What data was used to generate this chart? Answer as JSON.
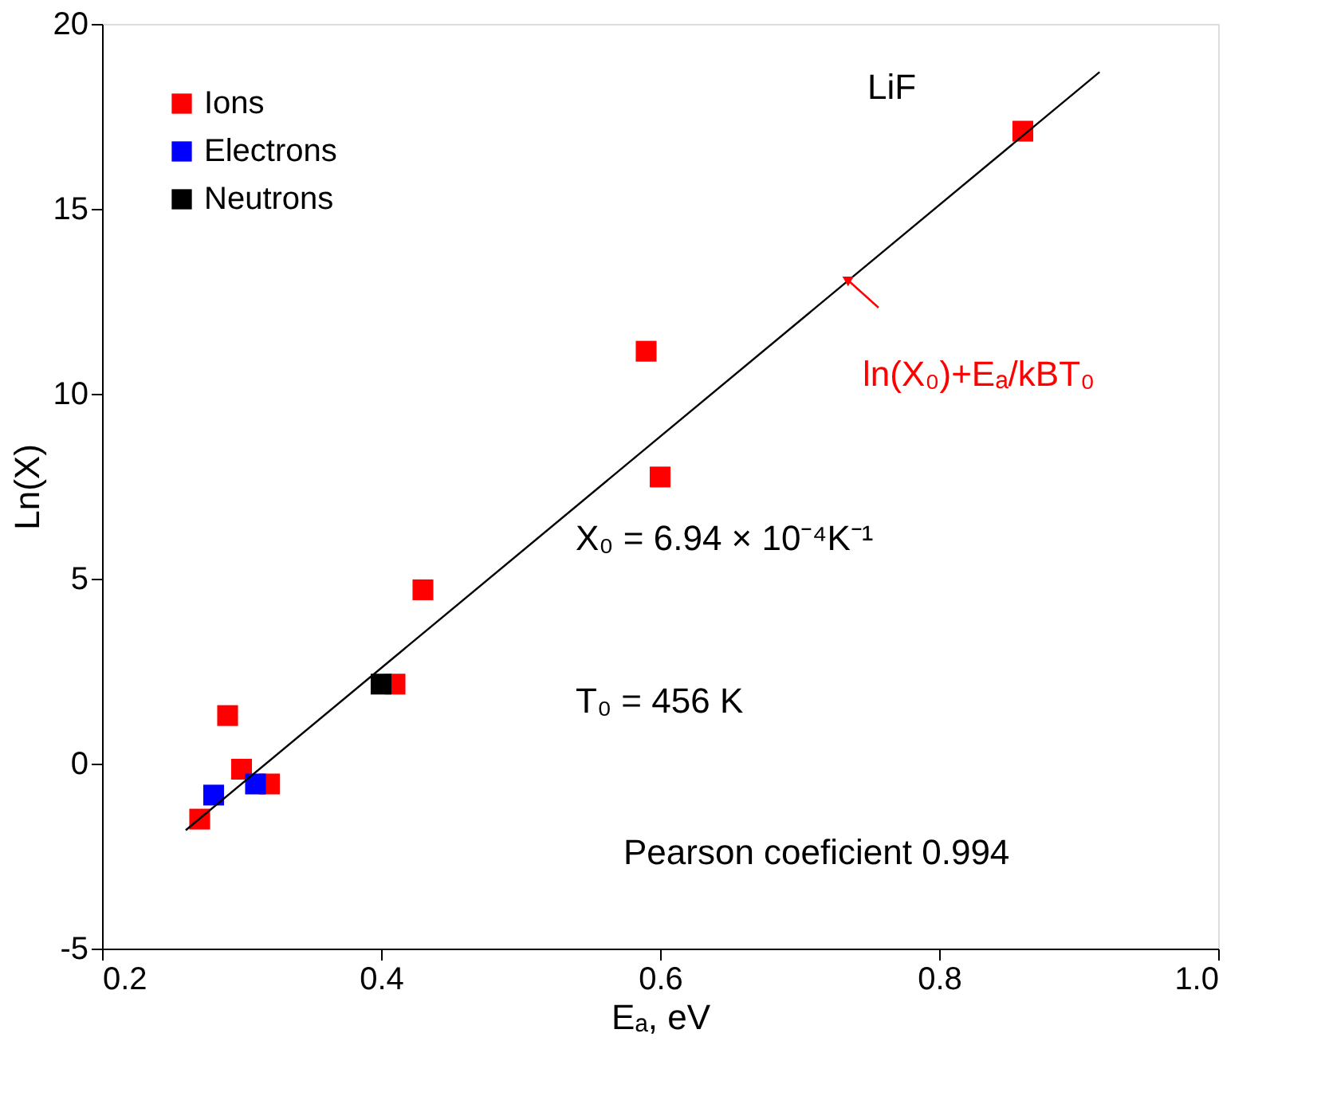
{
  "chart_data": {
    "type": "scatter",
    "xlabel": "Eₐ, eV",
    "ylabel": "Ln(X)",
    "xlim": [
      0.2,
      1.0
    ],
    "ylim": [
      -5,
      20
    ],
    "xticks": [
      {
        "value": 0.2,
        "label": "0.2"
      },
      {
        "value": 0.4,
        "label": "0.4"
      },
      {
        "value": 0.6,
        "label": "0.6"
      },
      {
        "value": 0.8,
        "label": "0.8"
      },
      {
        "value": 1.0,
        "label": "1.0"
      }
    ],
    "yticks": [
      -5,
      0,
      5,
      10,
      15,
      20
    ],
    "grid": false,
    "legend": "top left",
    "marker": "square",
    "series": [
      {
        "name": "Ions",
        "color": "#ff0000",
        "x": [
          0.27,
          0.29,
          0.3,
          0.32,
          0.41,
          0.43,
          0.59,
          0.6,
          0.86
        ],
        "values": [
          -1.5,
          1.3,
          -0.15,
          -0.55,
          2.15,
          4.7,
          11.15,
          7.75,
          17.1
        ]
      },
      {
        "name": "Electrons",
        "color": "#0000ff",
        "x": [
          0.28,
          0.31
        ],
        "values": [
          -0.85,
          -0.55
        ]
      },
      {
        "name": "Neutrons",
        "color": "#000000",
        "x": [
          0.4
        ],
        "values": [
          2.15
        ]
      },
      {
        "type": "line",
        "color": "#000000",
        "marker": "none",
        "line_style": "solid",
        "x": [
          0.26,
          0.915
        ],
        "values": [
          -1.8,
          18.7
        ]
      }
    ],
    "annotations": [
      "LiF",
      "ln(X₀)+Eₐ/kBT₀",
      "X₀ = 6.94 × 10⁻⁴K⁻¹",
      "T₀ = 456 K",
      "Pearson coeficient 0.994"
    ]
  }
}
